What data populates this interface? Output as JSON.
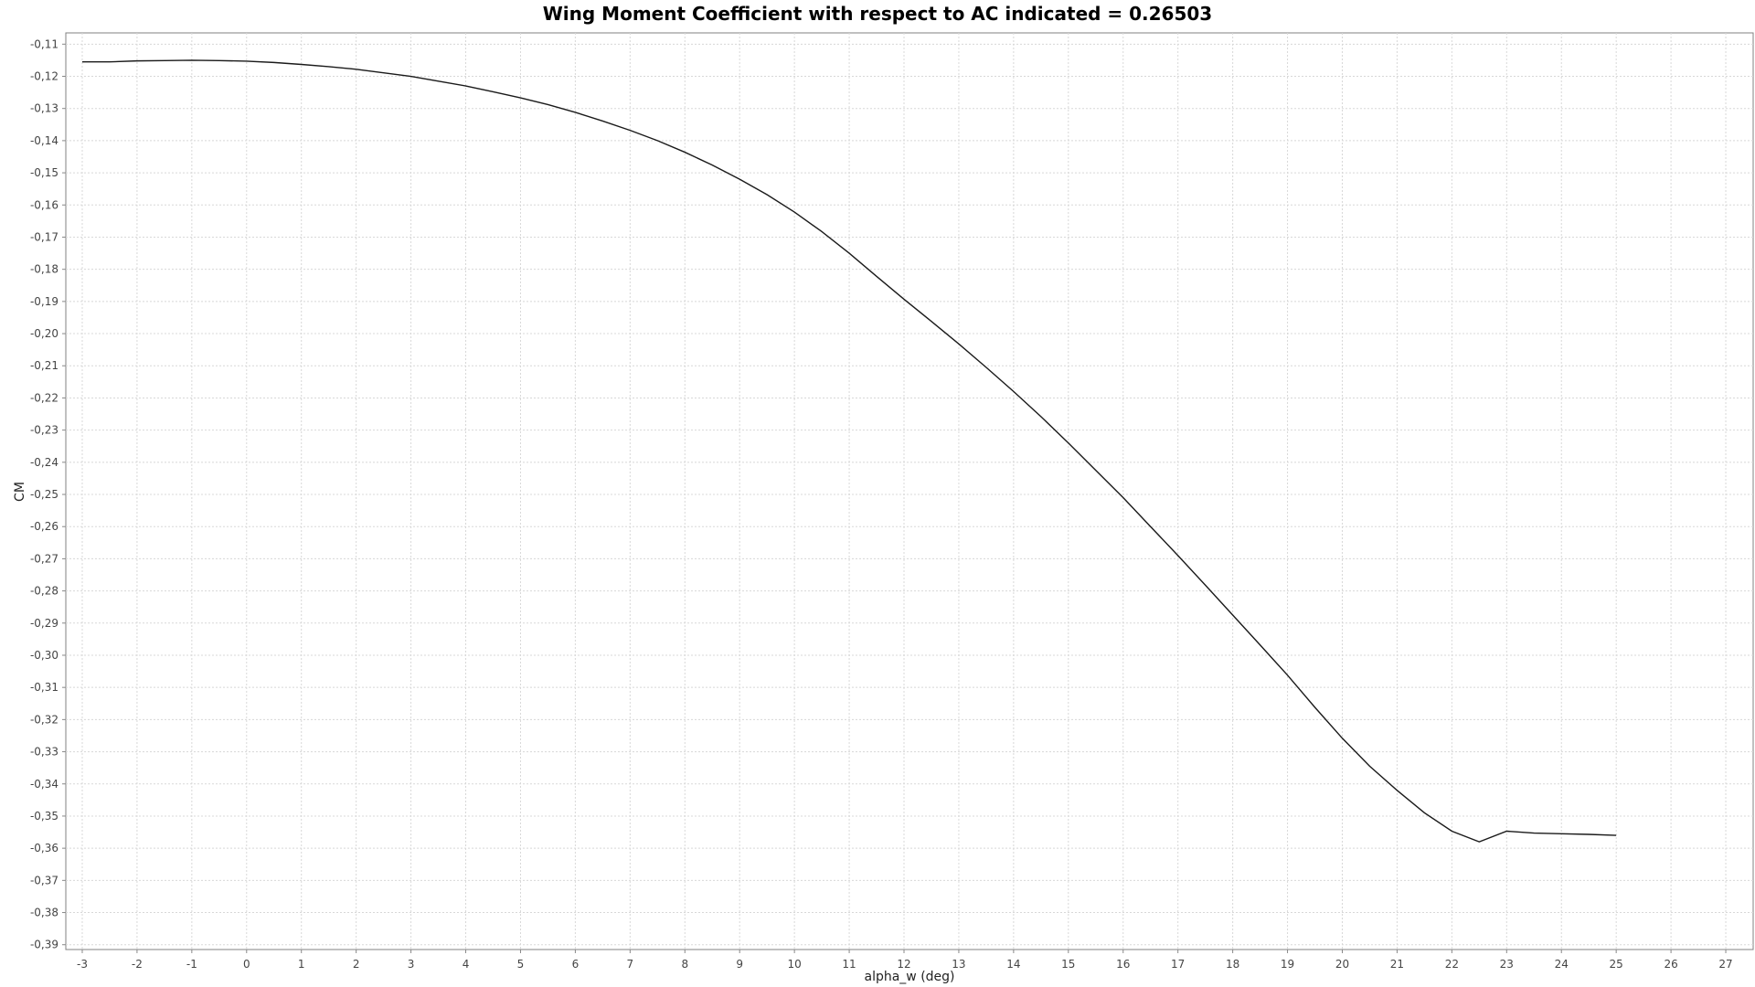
{
  "chart_data": {
    "type": "line",
    "title": "Wing Moment Coefficient with respect to AC indicated = 0.26503",
    "xlabel": "alpha_w (deg)",
    "ylabel": "CM",
    "xlim": [
      -3.3,
      27.5
    ],
    "ylim": [
      -0.3915,
      -0.1065
    ],
    "grid": true,
    "legend": "none",
    "line_color": "#1a1a1a",
    "x_ticks": [
      -3,
      -2,
      -1,
      0,
      1,
      2,
      3,
      4,
      5,
      6,
      7,
      8,
      9,
      10,
      11,
      12,
      13,
      14,
      15,
      16,
      17,
      18,
      19,
      20,
      21,
      22,
      23,
      24,
      25,
      26,
      27
    ],
    "x_tick_labels": [
      "-3",
      "-2",
      "-1",
      "0",
      "1",
      "2",
      "3",
      "4",
      "5",
      "6",
      "7",
      "8",
      "9",
      "10",
      "11",
      "12",
      "13",
      "14",
      "15",
      "16",
      "17",
      "18",
      "19",
      "20",
      "21",
      "22",
      "23",
      "24",
      "25",
      "26",
      "27"
    ],
    "y_ticks": [
      -0.11,
      -0.12,
      -0.13,
      -0.14,
      -0.15,
      -0.16,
      -0.17,
      -0.18,
      -0.19,
      -0.2,
      -0.21,
      -0.22,
      -0.23,
      -0.24,
      -0.25,
      -0.26,
      -0.27,
      -0.28,
      -0.29,
      -0.3,
      -0.31,
      -0.32,
      -0.33,
      -0.34,
      -0.35,
      -0.36,
      -0.37,
      -0.38,
      -0.39
    ],
    "y_tick_labels": [
      "-0,11",
      "-0,12",
      "-0,13",
      "-0,14",
      "-0,15",
      "-0,16",
      "-0,17",
      "-0,18",
      "-0,19",
      "-0,20",
      "-0,21",
      "-0,22",
      "-0,23",
      "-0,24",
      "-0,25",
      "-0,26",
      "-0,27",
      "-0,28",
      "-0,29",
      "-0,30",
      "-0,31",
      "-0,32",
      "-0,33",
      "-0,34",
      "-0,35",
      "-0,36",
      "-0,37",
      "-0,38",
      "-0,39"
    ],
    "series": [
      {
        "x": [
          -3,
          -2.5,
          -2,
          -1.5,
          -1,
          -0.5,
          0,
          0.5,
          1,
          1.5,
          2,
          2.5,
          3,
          3.5,
          4,
          4.5,
          5,
          5.5,
          6,
          6.5,
          7,
          7.5,
          8,
          8.5,
          9,
          9.5,
          10,
          10.5,
          11,
          11.5,
          12,
          12.5,
          13,
          13.5,
          14,
          14.5,
          15,
          15.5,
          16,
          16.5,
          17,
          17.5,
          18,
          18.5,
          19,
          19.5,
          20,
          20.5,
          21,
          21.5,
          22,
          22.5,
          23,
          23.5,
          24,
          24.5,
          25
        ],
        "y": [
          -0.1155,
          -0.1155,
          -0.1152,
          -0.1151,
          -0.115,
          -0.1151,
          -0.1153,
          -0.1157,
          -0.1163,
          -0.117,
          -0.1178,
          -0.1189,
          -0.12,
          -0.1215,
          -0.123,
          -0.1248,
          -0.1267,
          -0.1288,
          -0.1312,
          -0.1339,
          -0.1368,
          -0.14,
          -0.1436,
          -0.1476,
          -0.152,
          -0.1568,
          -0.1622,
          -0.1683,
          -0.175,
          -0.1822,
          -0.1893,
          -0.1962,
          -0.2032,
          -0.2105,
          -0.218,
          -0.2258,
          -0.234,
          -0.2425,
          -0.251,
          -0.26,
          -0.269,
          -0.2782,
          -0.2875,
          -0.2968,
          -0.3062,
          -0.3162,
          -0.3258,
          -0.3345,
          -0.342,
          -0.349,
          -0.3547,
          -0.358,
          -0.3547,
          -0.3553,
          -0.3555,
          -0.3557,
          -0.356
        ]
      }
    ]
  }
}
